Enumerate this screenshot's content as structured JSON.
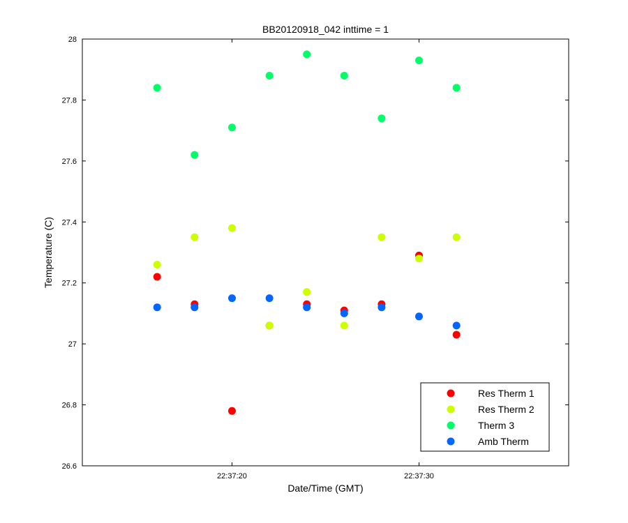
{
  "chart_data": {
    "type": "scatter",
    "title": "BB20120918_042 inttime = 1",
    "xlabel": "Date/Time (GMT)",
    "ylabel": "Temperature (C)",
    "x_unit": "GMT time of day",
    "xlim": [
      "22:37:12",
      "22:37:38"
    ],
    "ylim": [
      26.6,
      28.0
    ],
    "x_ticks": [
      {
        "value": "22:37:20",
        "label": "22:37:20"
      },
      {
        "value": "22:37:30",
        "label": "22:37:30"
      }
    ],
    "y_ticks": [
      26.6,
      26.8,
      27.0,
      27.2,
      27.4,
      27.6,
      27.8,
      28.0
    ],
    "y_tick_labels": [
      "26.6",
      "26.8",
      "27",
      "27.2",
      "27.4",
      "27.6",
      "27.8",
      "28"
    ],
    "x": [
      "22:37:16",
      "22:37:18",
      "22:37:20",
      "22:37:22",
      "22:37:24",
      "22:37:26",
      "22:37:28",
      "22:37:30",
      "22:37:32"
    ],
    "series": [
      {
        "name": "Res Therm 1",
        "color": "#ff0000",
        "values": [
          27.22,
          27.13,
          26.78,
          27.06,
          27.13,
          27.11,
          27.13,
          27.29,
          27.03
        ]
      },
      {
        "name": "Res Therm 2",
        "color": "#ccff00",
        "values": [
          27.26,
          27.35,
          27.38,
          27.06,
          27.17,
          27.06,
          27.35,
          27.28,
          27.35
        ]
      },
      {
        "name": "Therm 3",
        "color": "#00ff66",
        "values": [
          27.84,
          27.62,
          27.71,
          27.88,
          27.95,
          27.88,
          27.74,
          27.93,
          27.84
        ]
      },
      {
        "name": "Amb Therm",
        "color": "#0066ff",
        "values": [
          27.12,
          27.12,
          27.15,
          27.15,
          27.12,
          27.1,
          27.12,
          27.09,
          27.06
        ]
      }
    ],
    "grid": false,
    "legend_position": "bottom-right",
    "marker": "filled-circle"
  }
}
